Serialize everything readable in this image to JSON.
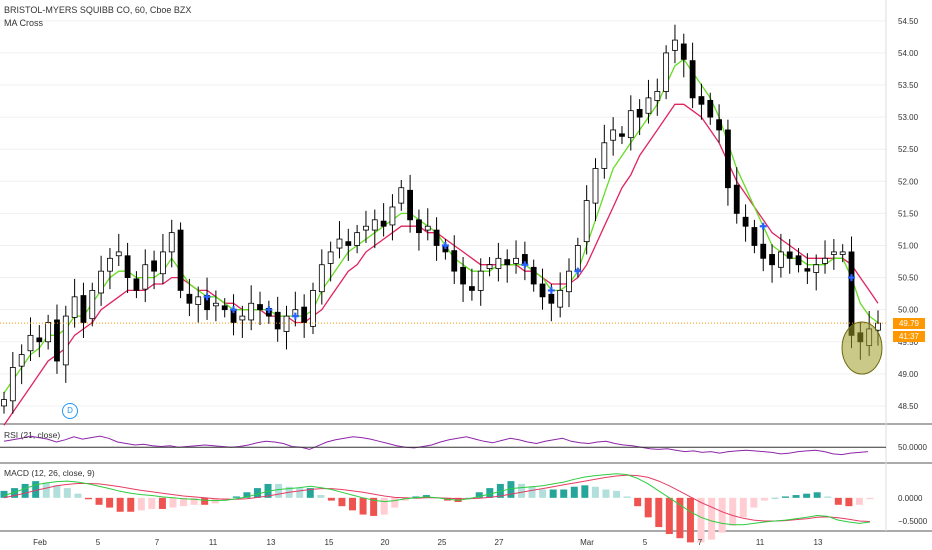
{
  "header": {
    "title": "BRISTOL-MYERS SQUIBB CO, 60, Cboe BZX",
    "indicator": "MA Cross"
  },
  "price_tags": {
    "last_price": "49.79",
    "countdown": "41:37"
  },
  "event_badge": "D",
  "colors": {
    "up": "#ffffff",
    "down": "#000000",
    "fast_ma": "#66dd22",
    "slow_ma": "#e0245e",
    "cross_marker": "#2962ff",
    "rsi": "#8e24aa",
    "macd_line": "#2ecc40",
    "signal_line": "#e63c64",
    "hist_up": "#26a69a",
    "hist_down": "#ef5350",
    "last_price_line": "#ff9800",
    "highlight": "#9e9d24"
  },
  "chart_data": [
    {
      "type": "candlestick",
      "title": "BRISTOL-MYERS SQUIBB CO, 60, Cboe BZX",
      "indicator_label": "MA Cross",
      "x_tick_labels": [
        "Feb",
        "5",
        "7",
        "11",
        "13",
        "15",
        "20",
        "25",
        "27",
        "Mar",
        "5",
        "7",
        "11",
        "13"
      ],
      "y_ticks": [
        48.5,
        49.0,
        49.5,
        50.0,
        50.5,
        51.0,
        51.5,
        52.0,
        52.5,
        53.0,
        53.5,
        54.0,
        54.5
      ],
      "ylim": [
        48.25,
        54.7
      ],
      "last_price": 49.79,
      "series_close": [
        48.6,
        49.1,
        49.3,
        49.6,
        49.5,
        49.8,
        49.2,
        49.9,
        50.2,
        49.8,
        50.3,
        50.6,
        50.8,
        50.9,
        50.5,
        50.3,
        50.7,
        50.6,
        50.9,
        51.2,
        50.3,
        50.1,
        50.2,
        50.0,
        50.1,
        50.0,
        49.8,
        49.9,
        50.1,
        50.0,
        49.9,
        49.7,
        49.9,
        50.0,
        49.8,
        50.3,
        50.7,
        50.9,
        51.1,
        51.0,
        51.2,
        51.3,
        51.4,
        51.3,
        51.6,
        51.9,
        51.4,
        51.2,
        51.3,
        51.0,
        50.9,
        50.6,
        50.4,
        50.3,
        50.6,
        50.7,
        50.8,
        50.7,
        50.8,
        50.7,
        50.4,
        50.2,
        50.1,
        50.3,
        50.6,
        51.0,
        51.7,
        52.2,
        52.6,
        52.8,
        52.7,
        53.1,
        53.0,
        53.3,
        53.4,
        54.0,
        54.2,
        53.9,
        53.3,
        53.2,
        53.0,
        52.8,
        51.9,
        51.5,
        51.3,
        51.0,
        50.8,
        50.7,
        50.9,
        50.8,
        50.7,
        50.6,
        50.7,
        50.8,
        50.9,
        50.9,
        49.6,
        49.5,
        49.7,
        49.79
      ],
      "fast_ma": {
        "name": "",
        "values": [
          48.7,
          48.9,
          49.1,
          49.3,
          49.4,
          49.6,
          49.6,
          49.7,
          49.9,
          49.9,
          50.1,
          50.3,
          50.5,
          50.6,
          50.6,
          50.5,
          50.5,
          50.5,
          50.6,
          50.8,
          50.6,
          50.4,
          50.3,
          50.2,
          50.2,
          50.1,
          50.0,
          50.0,
          50.0,
          50.0,
          50.0,
          49.9,
          49.9,
          49.9,
          49.9,
          50.0,
          50.3,
          50.5,
          50.7,
          50.9,
          51.0,
          51.1,
          51.2,
          51.3,
          51.4,
          51.5,
          51.5,
          51.4,
          51.3,
          51.2,
          51.0,
          50.8,
          50.7,
          50.6,
          50.6,
          50.6,
          50.7,
          50.7,
          50.7,
          50.7,
          50.6,
          50.5,
          50.3,
          50.3,
          50.4,
          50.6,
          51.0,
          51.4,
          51.8,
          52.2,
          52.4,
          52.6,
          52.8,
          53.0,
          53.2,
          53.5,
          53.8,
          53.9,
          53.7,
          53.5,
          53.3,
          53.0,
          52.6,
          52.2,
          51.9,
          51.6,
          51.3,
          51.0,
          50.9,
          50.8,
          50.8,
          50.7,
          50.7,
          50.7,
          50.8,
          50.8,
          50.5,
          50.1,
          49.9,
          49.8
        ]
      },
      "slow_ma": {
        "name": "",
        "values": [
          48.2,
          48.4,
          48.6,
          48.8,
          49.0,
          49.2,
          49.3,
          49.4,
          49.6,
          49.7,
          49.8,
          50.0,
          50.1,
          50.2,
          50.3,
          50.3,
          50.3,
          50.4,
          50.4,
          50.5,
          50.5,
          50.4,
          50.3,
          50.3,
          50.2,
          50.1,
          50.1,
          50.0,
          50.0,
          50.0,
          49.9,
          49.9,
          49.9,
          49.8,
          49.8,
          49.9,
          50.0,
          50.2,
          50.4,
          50.6,
          50.7,
          50.9,
          51.0,
          51.1,
          51.2,
          51.3,
          51.3,
          51.3,
          51.2,
          51.2,
          51.1,
          51.0,
          50.9,
          50.8,
          50.7,
          50.7,
          50.7,
          50.7,
          50.7,
          50.6,
          50.6,
          50.5,
          50.4,
          50.4,
          50.4,
          50.5,
          50.7,
          51.0,
          51.3,
          51.6,
          51.9,
          52.1,
          52.4,
          52.6,
          52.8,
          53.0,
          53.2,
          53.2,
          53.1,
          53.0,
          52.8,
          52.6,
          52.3,
          52.0,
          51.8,
          51.6,
          51.4,
          51.2,
          51.1,
          51.0,
          50.9,
          50.8,
          50.8,
          50.8,
          50.8,
          50.8,
          50.7,
          50.5,
          50.3,
          50.1
        ]
      }
    },
    {
      "type": "line",
      "title": "RSI (21, close)",
      "y_ticks": [
        50.0
      ],
      "values": [
        58,
        60,
        62,
        65,
        63,
        61,
        57,
        60,
        64,
        61,
        63,
        65,
        62,
        57,
        55,
        53,
        54,
        52,
        51,
        52,
        50,
        51,
        52,
        53,
        52,
        51,
        50,
        51,
        53,
        56,
        58,
        57,
        55,
        51,
        50,
        47,
        52,
        57,
        60,
        62,
        64,
        63,
        61,
        58,
        55,
        52,
        50,
        49,
        51,
        53,
        57,
        60,
        62,
        64,
        61,
        58,
        56,
        59,
        62,
        60,
        57,
        55,
        58,
        60,
        62,
        58,
        56,
        55,
        57,
        58,
        55,
        53,
        52,
        50,
        48,
        47,
        48,
        46,
        44,
        45,
        43,
        44,
        42,
        44,
        45,
        46,
        45,
        44,
        43,
        41,
        42,
        44,
        45,
        46,
        44,
        41,
        40,
        42,
        43,
        44
      ]
    },
    {
      "type": "line",
      "title": "MACD (12, 26, close, 9)",
      "y_ticks": [
        0.0,
        -0.5
      ],
      "series": [
        {
          "name": "",
          "values": [
            0.05,
            0.12,
            0.2,
            0.28,
            0.32,
            0.35,
            0.36,
            0.34,
            0.3,
            0.25,
            0.2,
            0.14,
            0.1,
            0.07,
            0.05,
            0.02,
            0.0,
            -0.02,
            -0.03,
            -0.05,
            -0.06,
            -0.05,
            -0.02,
            0.02,
            0.08,
            0.14,
            0.18,
            0.2,
            0.22,
            0.25,
            0.22,
            0.18,
            0.12,
            0.06,
            0.0,
            -0.05,
            -0.08,
            -0.06,
            -0.02,
            0.0,
            0.02,
            0.0,
            -0.03,
            -0.05,
            -0.02,
            0.03,
            0.08,
            0.14,
            0.2,
            0.22,
            0.24,
            0.26,
            0.3,
            0.34,
            0.4,
            0.45,
            0.48,
            0.5,
            0.52,
            0.5,
            0.42,
            0.3,
            0.15,
            0.0,
            -0.15,
            -0.3,
            -0.42,
            -0.5,
            -0.55,
            -0.58,
            -0.58,
            -0.55,
            -0.52,
            -0.5,
            -0.48,
            -0.45,
            -0.42,
            -0.38,
            -0.4,
            -0.48,
            -0.52,
            -0.55,
            -0.52
          ]
        },
        {
          "name": "",
          "values": [
            0.0,
            0.05,
            0.1,
            0.16,
            0.21,
            0.26,
            0.29,
            0.31,
            0.31,
            0.3,
            0.27,
            0.24,
            0.2,
            0.16,
            0.13,
            0.1,
            0.07,
            0.04,
            0.02,
            0.0,
            -0.02,
            -0.03,
            -0.03,
            -0.02,
            0.01,
            0.04,
            0.08,
            0.12,
            0.15,
            0.18,
            0.2,
            0.2,
            0.18,
            0.15,
            0.12,
            0.08,
            0.04,
            0.01,
            0.0,
            -0.01,
            0.0,
            0.0,
            -0.01,
            -0.02,
            -0.02,
            -0.01,
            0.01,
            0.04,
            0.08,
            0.12,
            0.16,
            0.2,
            0.24,
            0.28,
            0.32,
            0.36,
            0.4,
            0.44,
            0.47,
            0.49,
            0.48,
            0.44,
            0.36,
            0.26,
            0.14,
            0.02,
            -0.1,
            -0.2,
            -0.3,
            -0.38,
            -0.44,
            -0.48,
            -0.5,
            -0.5,
            -0.49,
            -0.47,
            -0.45,
            -0.42,
            -0.41,
            -0.43,
            -0.46,
            -0.5,
            -0.51
          ]
        }
      ]
    }
  ]
}
